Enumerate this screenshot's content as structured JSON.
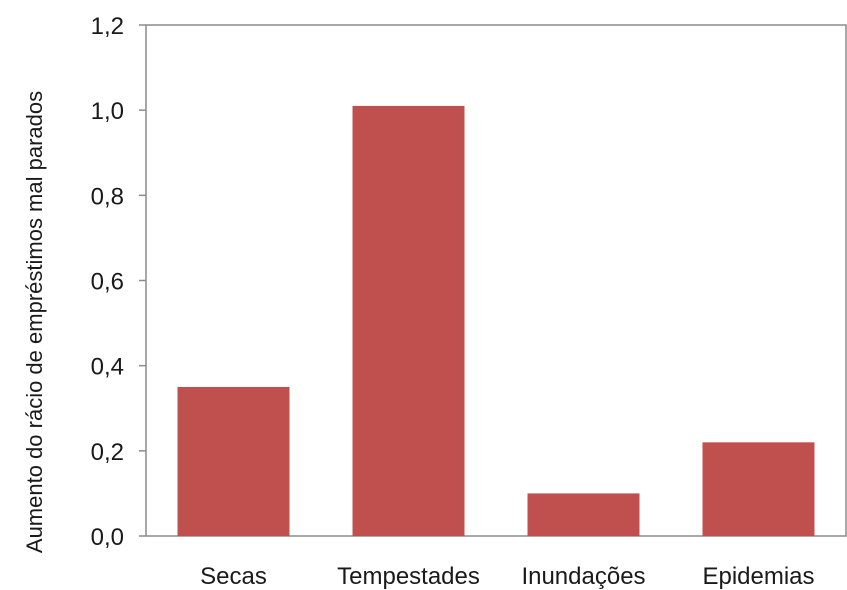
{
  "chart_data": {
    "type": "bar",
    "categories": [
      "Secas",
      "Tempestades",
      "Inundações",
      "Epidemias"
    ],
    "values": [
      0.35,
      1.01,
      0.1,
      0.22
    ],
    "xlabel": "",
    "ylabel": "Aumento do rácio de empréstimos mal parados",
    "ylim": [
      0,
      1.2
    ],
    "yticks": [
      0.0,
      0.2,
      0.4,
      0.6,
      0.8,
      1.0,
      1.2
    ],
    "ytick_labels": [
      "0,0",
      "0,2",
      "0,4",
      "0,6",
      "0,8",
      "1,0",
      "1,2"
    ],
    "grid": false,
    "legend": "none",
    "colors": {
      "bar": "#c0504d",
      "frame": "#8c8c8c"
    }
  }
}
